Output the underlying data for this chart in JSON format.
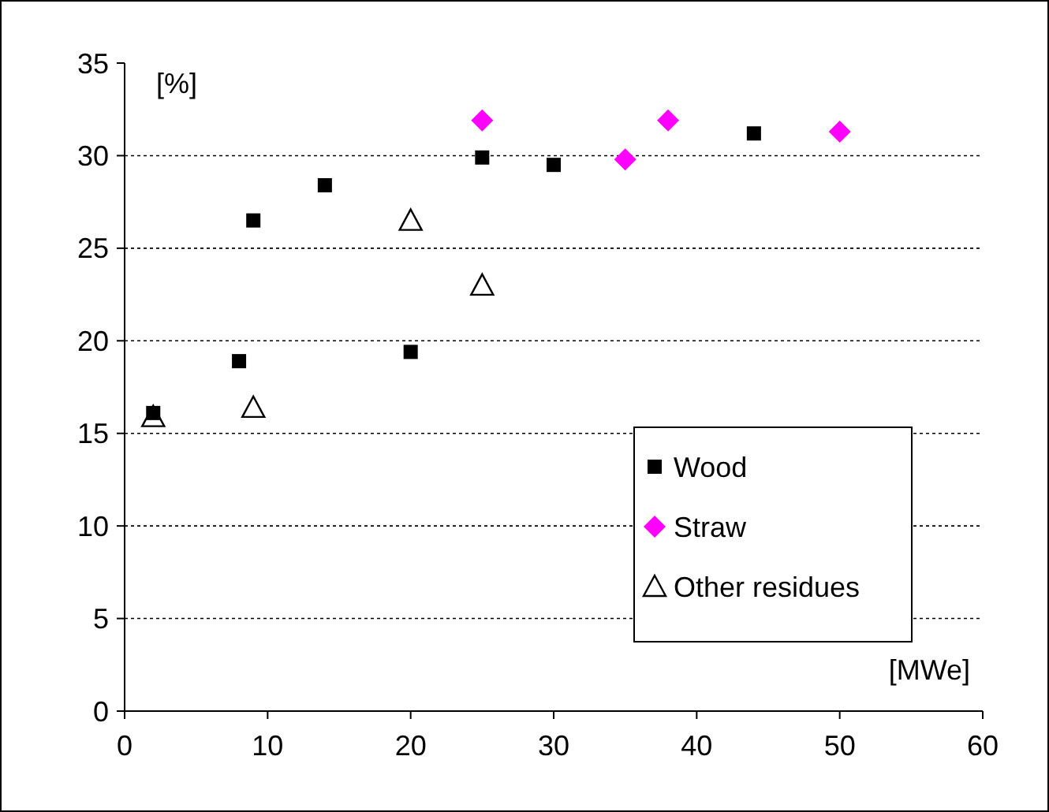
{
  "chart_data": {
    "type": "scatter",
    "xlabel": "[MWe]",
    "ylabel": "[%]",
    "xlim": [
      0,
      60
    ],
    "xticks": [
      0,
      10,
      20,
      30,
      40,
      50,
      60
    ],
    "ylim": [
      0,
      35
    ],
    "yticks": [
      0,
      5,
      10,
      15,
      20,
      25,
      30,
      35
    ],
    "grid": "y",
    "legend": "bottom right",
    "series": [
      {
        "name": "Wood",
        "color": "#000000",
        "marker": "square",
        "x": [
          2,
          8,
          9,
          14,
          20,
          25,
          30,
          44
        ],
        "values": [
          16.1,
          18.9,
          26.5,
          28.4,
          19.4,
          29.9,
          29.5,
          31.2
        ]
      },
      {
        "name": "Straw",
        "color": "#ff00ff",
        "marker": "diamond",
        "x": [
          25,
          35,
          38,
          50
        ],
        "values": [
          31.9,
          29.8,
          31.9,
          31.3
        ]
      },
      {
        "name": "Other residues",
        "color": "#000000",
        "marker": "triangle",
        "x": [
          2,
          9,
          20,
          25
        ],
        "values": [
          15.9,
          16.4,
          26.5,
          23.0
        ]
      }
    ]
  }
}
